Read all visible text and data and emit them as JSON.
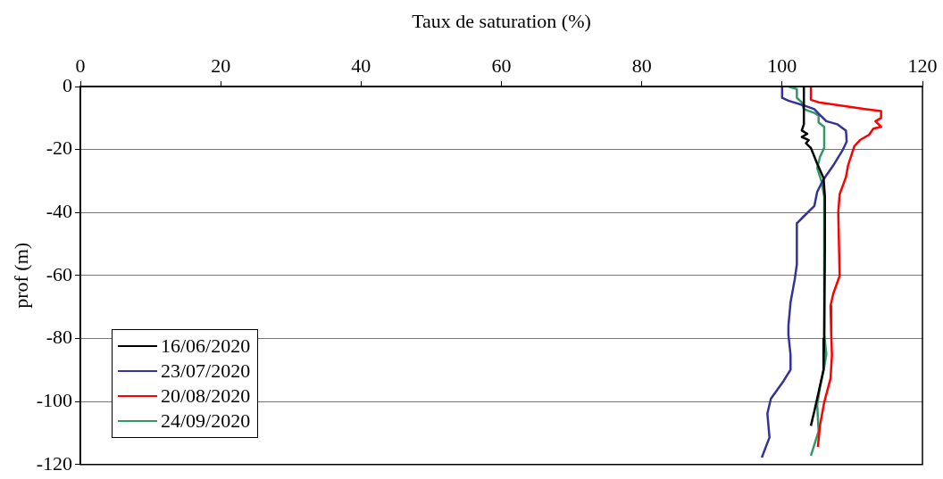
{
  "chart_data": {
    "type": "line",
    "xlabel": "Taux de saturation (%)",
    "ylabel": "prof (m)",
    "xlim": [
      0,
      120
    ],
    "xticks": [
      0,
      20,
      40,
      60,
      80,
      100,
      120
    ],
    "ylim": [
      -120,
      0
    ],
    "yticks": [
      -120,
      -100,
      -80,
      -60,
      -40,
      -20,
      0
    ],
    "grid": "y",
    "legend": "bottom left",
    "marker": "none",
    "line_style": "solid",
    "series": [
      {
        "name": "16/06/2020",
        "color": "#000000",
        "x": [
          103.1,
          103.1,
          102.8,
          103.6,
          102.8,
          103.8,
          103.4,
          104.1,
          105,
          105.9,
          106.1,
          106.1,
          106,
          105.9,
          105.3,
          104.6,
          104.1
        ],
        "values": [
          0,
          -12,
          -14,
          -15,
          -16,
          -17,
          -18,
          -19.5,
          -24.5,
          -29,
          -35,
          -50,
          -80,
          -90,
          -96,
          -103,
          -107.7
        ]
      },
      {
        "name": "23/07/2020",
        "color": "#333399",
        "x": [
          100,
          100,
          100.9,
          103.1,
          104.6,
          105.2,
          106.3,
          107.9,
          109.1,
          109.2,
          108.6,
          107.3,
          105.9,
          105,
          104.6,
          103.1,
          102.1,
          102.1,
          101.8,
          101.2,
          100.9,
          100.9,
          101.2,
          101.2,
          100.2,
          98.4,
          97.9,
          98.2,
          97.1
        ],
        "values": [
          0,
          -3.6,
          -4.5,
          -6,
          -7.2,
          -8.6,
          -11,
          -12,
          -14,
          -17.5,
          -20.3,
          -25,
          -29.5,
          -33.4,
          -37.9,
          -41.2,
          -43.4,
          -56.5,
          -61.2,
          -68.5,
          -76,
          -78.8,
          -85.2,
          -89.9,
          -93.5,
          -99.1,
          -103.8,
          -111.4,
          -117.8
        ]
      },
      {
        "name": "20/08/2020",
        "color": "#ff0000",
        "x": [
          104.1,
          104.1,
          105.2,
          109.4,
          112,
          114.1,
          114.1,
          113.3,
          114.1,
          113,
          112.4,
          111.1,
          110.3,
          109.4,
          109.1,
          108.2,
          108,
          108.2,
          107.3,
          106.9,
          107,
          107.1,
          106.9,
          106,
          105.4,
          105.1
        ],
        "values": [
          0,
          -4.2,
          -5,
          -6.4,
          -7.2,
          -7.8,
          -10,
          -11,
          -12.8,
          -13.4,
          -15.3,
          -17,
          -18.9,
          -25,
          -28.7,
          -34.2,
          -39.8,
          -60.1,
          -65.7,
          -69.6,
          -78.8,
          -85.2,
          -92.7,
          -100.2,
          -107.5,
          -114.4
        ]
      },
      {
        "name": "24/09/2020",
        "color": "#339966",
        "x": [
          100.9,
          102.1,
          102.1,
          102.8,
          103.1,
          104.6,
          105.2,
          105.2,
          106,
          106,
          105.4,
          105,
          105.6,
          106,
          106,
          106.3,
          106,
          105.4,
          105,
          105.2,
          104.1
        ],
        "values": [
          0,
          -0.8,
          -3.6,
          -5,
          -7.2,
          -8.4,
          -9.2,
          -11.4,
          -12.8,
          -19.5,
          -22.3,
          -25.9,
          -30,
          -35,
          -78.8,
          -85,
          -89,
          -95.5,
          -101,
          -109.4,
          -117.2
        ]
      }
    ]
  }
}
